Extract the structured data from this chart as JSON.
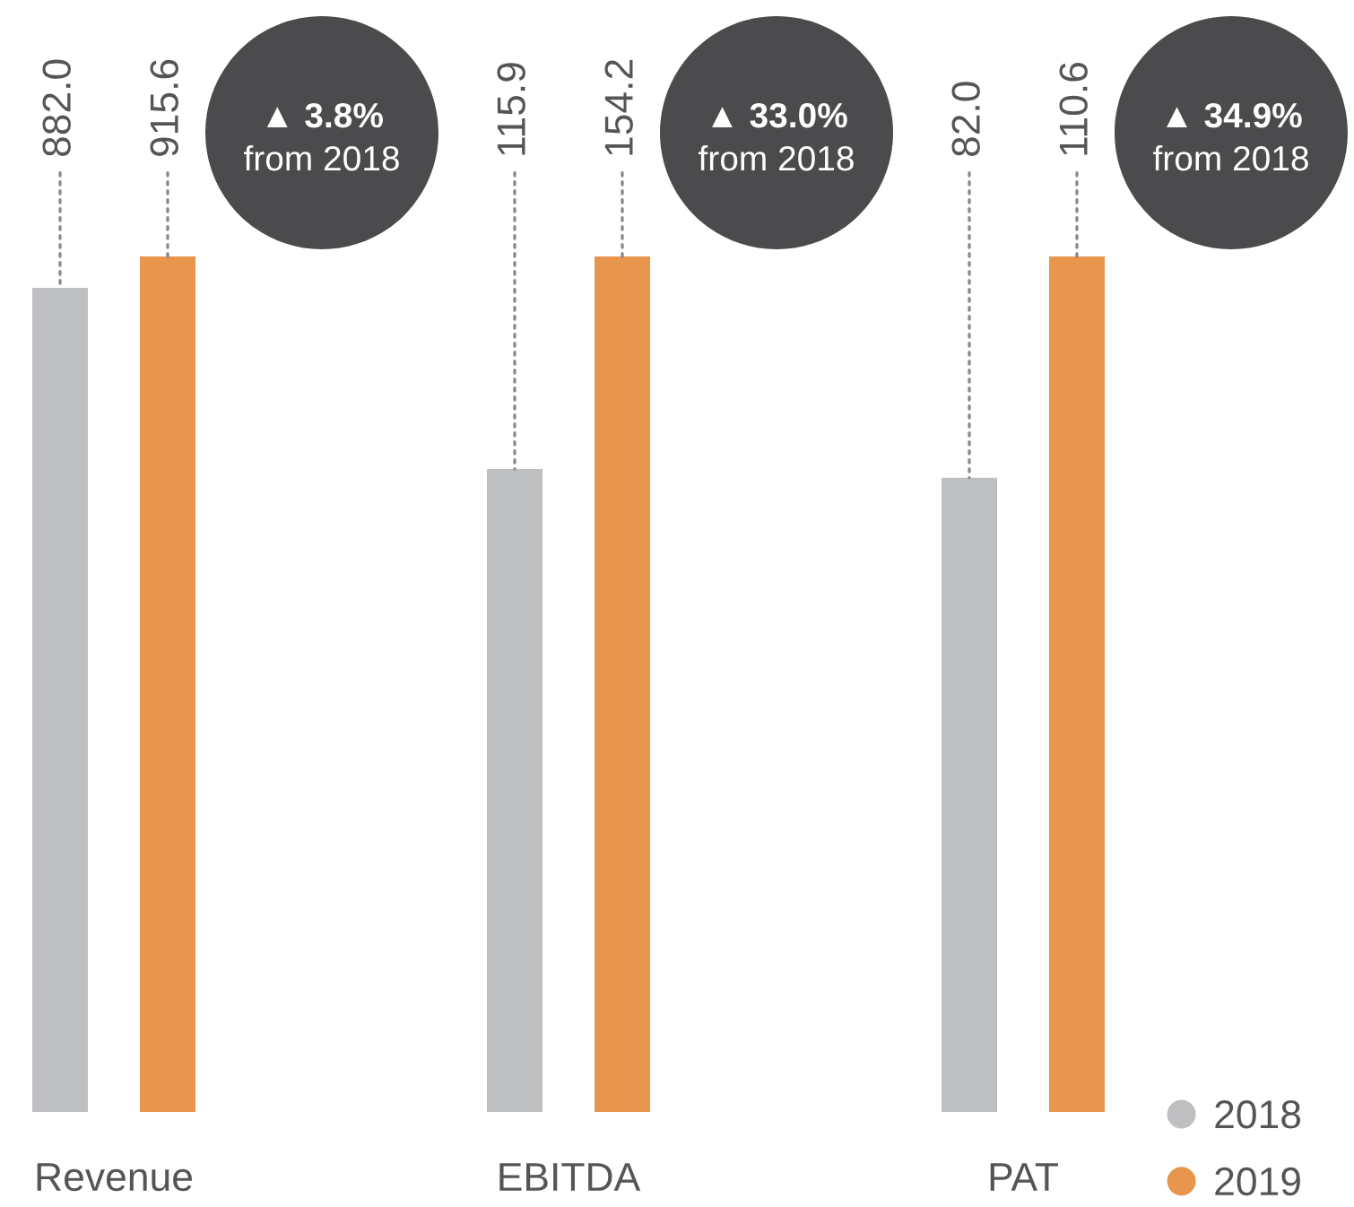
{
  "chart_data": [
    {
      "type": "bar",
      "categories": [
        "Revenue"
      ],
      "series": [
        {
          "name": "2018",
          "color": "#bebfc1",
          "values": [
            882.0
          ],
          "value_labels": [
            "882.0"
          ]
        },
        {
          "name": "2019",
          "color": "#e8954d",
          "values": [
            915.6
          ],
          "value_labels": [
            "915.6"
          ]
        }
      ],
      "tick_labels": "x",
      "annotations": [
        "▲ 3.8%",
        "from 2018"
      ],
      "legend": "bottom right"
    },
    {
      "type": "bar",
      "categories": [
        "EBITDA"
      ],
      "series": [
        {
          "name": "2018",
          "color": "#bebfc1",
          "values": [
            115.9
          ],
          "value_labels": [
            "115.9"
          ]
        },
        {
          "name": "2019",
          "color": "#e8954d",
          "values": [
            154.2
          ],
          "value_labels": [
            "154.2"
          ]
        }
      ],
      "tick_labels": "x",
      "annotations": [
        "▲ 33.0%",
        "from 2018"
      ]
    },
    {
      "type": "bar",
      "categories": [
        "PAT"
      ],
      "series": [
        {
          "name": "2018",
          "color": "#bebfc1",
          "values": [
            82.0
          ],
          "value_labels": [
            "82.0"
          ]
        },
        {
          "name": "2019",
          "color": "#e8954d",
          "values": [
            110.6
          ],
          "value_labels": [
            "110.6"
          ]
        }
      ],
      "tick_labels": "x",
      "annotations": [
        "▲ 34.9%",
        "from 2018"
      ]
    }
  ]
}
